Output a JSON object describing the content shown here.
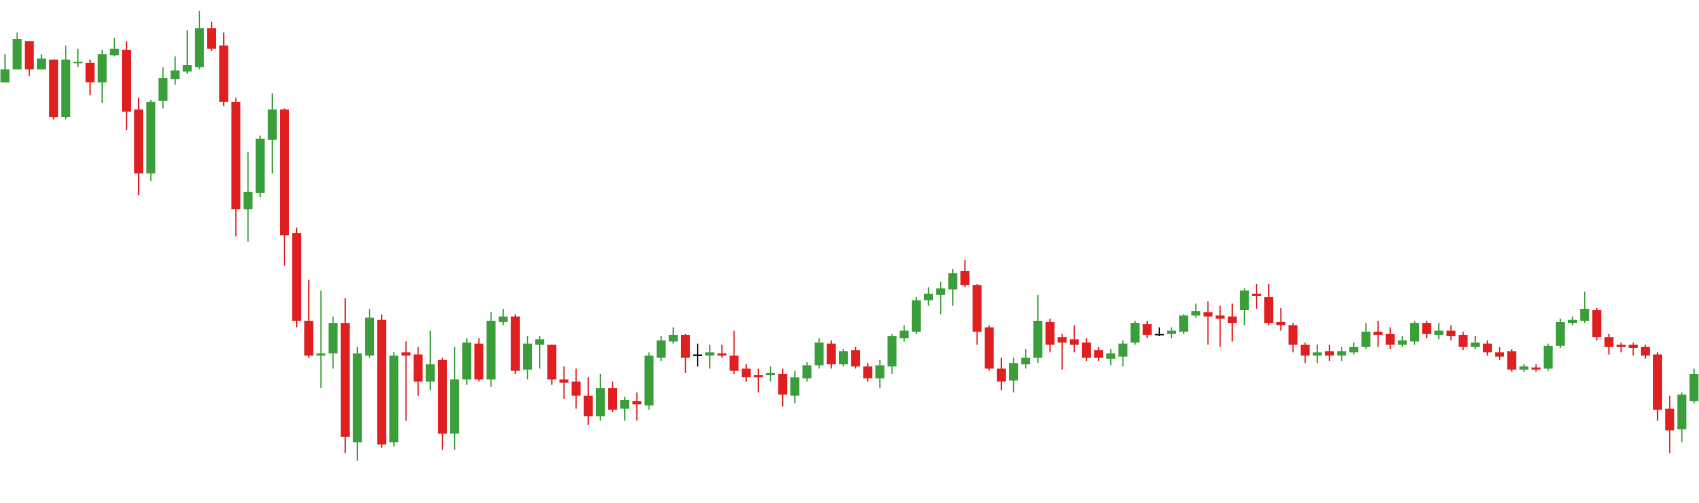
{
  "chart_data": {
    "type": "candlestick",
    "ylim": [
      0,
      464
    ],
    "up_color": "#3a9f3a",
    "down_color": "#e02020",
    "flat_color": "#111111",
    "open": [
      388,
      400,
      426,
      400,
      409,
      356,
      406,
      406,
      388,
      413,
      418,
      363,
      304,
      371,
      391,
      398,
      402,
      438,
      422,
      370,
      271,
      286,
      335,
      363,
      249,
      168,
      136,
      138,
      166,
      56,
      136,
      169,
      56,
      139,
      137,
      112,
      132,
      64,
      114,
      147,
      114,
      167,
      172,
      123,
      146,
      146,
      114,
      112,
      99,
      80,
      106,
      87,
      94,
      90,
      134,
      149,
      155,
      137,
      136,
      138,
      136,
      124,
      118,
      118,
      119,
      99,
      115,
      127,
      147,
      128,
      141,
      126,
      115,
      126,
      152,
      158,
      187,
      192,
      197,
      214,
      201,
      162,
      124,
      113,
      128,
      134,
      167,
      153,
      151,
      148,
      141,
      133,
      135,
      148,
      165,
      156,
      156,
      158,
      173,
      176,
      173,
      172,
      178,
      193,
      190,
      167,
      164,
      146,
      136,
      140,
      136,
      139,
      144,
      158,
      156,
      146,
      149,
      166,
      155,
      159,
      155,
      144,
      147,
      139,
      140,
      123,
      125,
      124,
      145,
      166,
      168,
      178,
      153,
      146,
      146,
      144,
      137,
      87,
      68,
      94
    ],
    "high": [
      414,
      434,
      426,
      414,
      409,
      422,
      419,
      409,
      418,
      429,
      426,
      374,
      372,
      402,
      412,
      436,
      454,
      444,
      434,
      374,
      324,
      339,
      378,
      364,
      254,
      206,
      196,
      172,
      189,
      144,
      179,
      174,
      139,
      149,
      144,
      159,
      134,
      144,
      152,
      152,
      176,
      179,
      174,
      154,
      154,
      146,
      126,
      124,
      116,
      119,
      112,
      98,
      102,
      139,
      154,
      162,
      156,
      147,
      146,
      146,
      159,
      128,
      124,
      126,
      124,
      122,
      130,
      152,
      150,
      142,
      144,
      129,
      132,
      156,
      164,
      190,
      199,
      204,
      216,
      224,
      202,
      164,
      134,
      134,
      142,
      192,
      170,
      156,
      164,
      152,
      144,
      142,
      150,
      168,
      168,
      162,
      162,
      174,
      184,
      186,
      182,
      184,
      198,
      202,
      202,
      180,
      166,
      148,
      146,
      146,
      144,
      148,
      166,
      168,
      162,
      154,
      168,
      168,
      166,
      164,
      158,
      154,
      150,
      144,
      142,
      128,
      128,
      147,
      170,
      172,
      195,
      180,
      156,
      148,
      148,
      146,
      139,
      99,
      102,
      124
    ],
    "low": [
      388,
      400,
      394,
      400,
      354,
      354,
      402,
      376,
      369,
      412,
      344,
      284,
      297,
      364,
      386,
      396,
      400,
      417,
      366,
      246,
      241,
      282,
      304,
      219,
      162,
      134,
      106,
      124,
      46,
      39,
      134,
      51,
      52,
      76,
      99,
      104,
      49,
      49,
      109,
      112,
      107,
      164,
      119,
      114,
      124,
      109,
      96,
      87,
      72,
      76,
      84,
      76,
      76,
      86,
      131,
      147,
      120,
      126,
      124,
      134,
      119,
      112,
      102,
      112,
      89,
      92,
      112,
      124,
      124,
      126,
      124,
      112,
      106,
      119,
      149,
      156,
      182,
      174,
      182,
      199,
      146,
      122,
      104,
      102,
      124,
      129,
      139,
      123,
      139,
      131,
      131,
      127,
      126,
      146,
      152,
      154,
      152,
      156,
      171,
      146,
      144,
      149,
      164,
      179,
      164,
      159,
      139,
      129,
      129,
      131,
      131,
      137,
      142,
      144,
      142,
      144,
      146,
      152,
      151,
      150,
      141,
      142,
      136,
      132,
      121,
      121,
      121,
      122,
      143,
      164,
      166,
      150,
      137,
      139,
      136,
      133,
      76,
      46,
      56,
      92
    ],
    "close": [
      400,
      428,
      400,
      410,
      356,
      409,
      407,
      388,
      414,
      419,
      361,
      304,
      370,
      392,
      399,
      404,
      438,
      419,
      370,
      271,
      287,
      336,
      363,
      247,
      168,
      136,
      138,
      166,
      61,
      138,
      171,
      54,
      136,
      136,
      112,
      128,
      64,
      114,
      148,
      114,
      168,
      172,
      122,
      147,
      151,
      114,
      111,
      99,
      80,
      106,
      86,
      95,
      91,
      136,
      150,
      155,
      134,
      137,
      139,
      136,
      122,
      116,
      116,
      120,
      100,
      116,
      127,
      148,
      128,
      140,
      126,
      115,
      127,
      154,
      159,
      187,
      193,
      198,
      212,
      201,
      158,
      124,
      112,
      129,
      134,
      168,
      146,
      148,
      146,
      134,
      134,
      138,
      147,
      166,
      155,
      156,
      159,
      173,
      177,
      172,
      170,
      166,
      196,
      191,
      166,
      164,
      146,
      136,
      139,
      136,
      140,
      144,
      158,
      155,
      146,
      150,
      166,
      156,
      159,
      154,
      144,
      148,
      139,
      135,
      123,
      126,
      123,
      145,
      167,
      169,
      179,
      153,
      144,
      144,
      143,
      136,
      86,
      67,
      100,
      119
    ]
  }
}
